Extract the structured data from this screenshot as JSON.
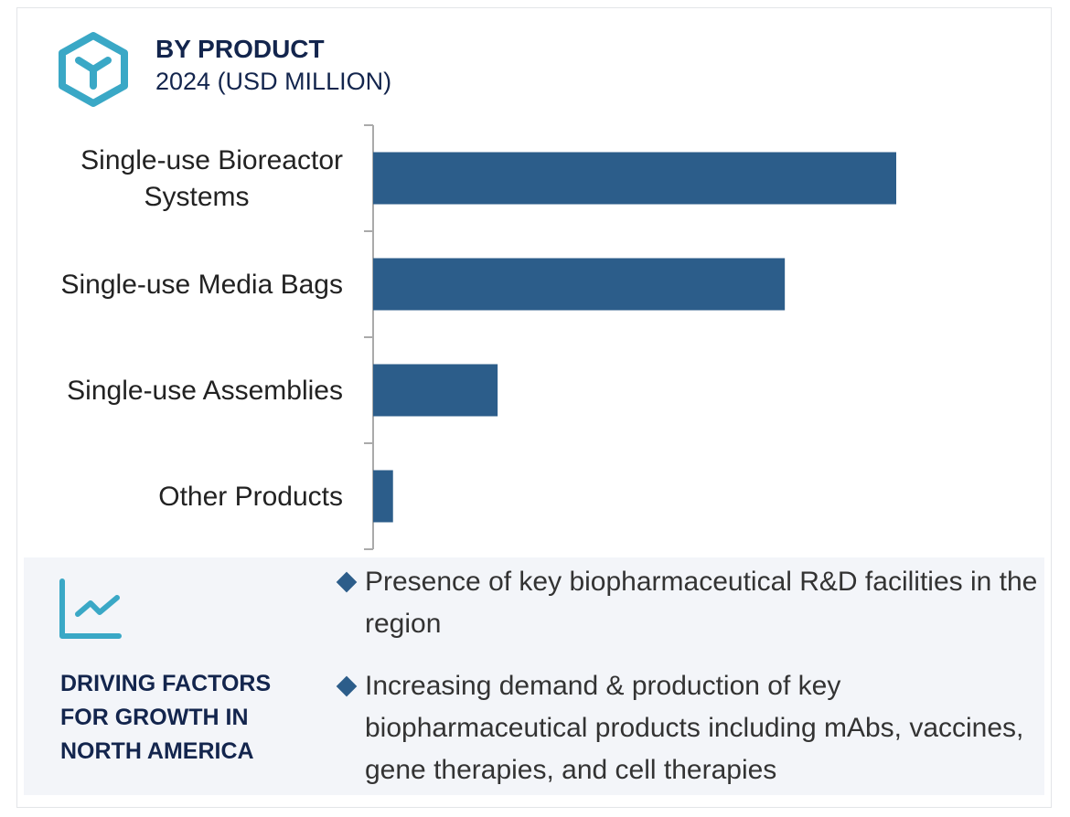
{
  "header": {
    "title": "BY PRODUCT",
    "subtitle": "2024 (USD MILLION)",
    "icon": "cube-icon"
  },
  "chart_data": {
    "type": "bar",
    "orientation": "horizontal",
    "title": "BY PRODUCT",
    "subtitle": "2024 (USD MILLION)",
    "categories": [
      "Single-use Bioreactor Systems",
      "Single-use Media Bags",
      "Single-use Assemblies",
      "Other Products"
    ],
    "category_lines": [
      [
        "Single-use Bioreactor",
        "Systems"
      ],
      [
        "Single-use Media Bags"
      ],
      [
        "Single-use Assemblies"
      ],
      [
        "Other Products"
      ]
    ],
    "values": [
      100,
      78.7,
      23.8,
      3.8
    ],
    "value_note": "relative bar lengths (no numeric axis shown)",
    "xlim": [
      0,
      100
    ],
    "grid": false,
    "bar_color": "#2c5d8a"
  },
  "drivers": {
    "icon": "line-chart-icon",
    "title_lines": [
      "DRIVING FACTORS",
      "FOR GROWTH IN",
      "NORTH AMERICA"
    ],
    "items": [
      "Presence of key biopharmaceutical R&D facilities in the region",
      "Increasing demand & production of key biopharmaceutical products including mAbs, vaccines, gene therapies, and cell therapies"
    ]
  },
  "colors": {
    "navy": "#13254d",
    "accent": "#3aa8c6",
    "bar": "#2c5d8a",
    "panel": "#f3f5f9"
  }
}
